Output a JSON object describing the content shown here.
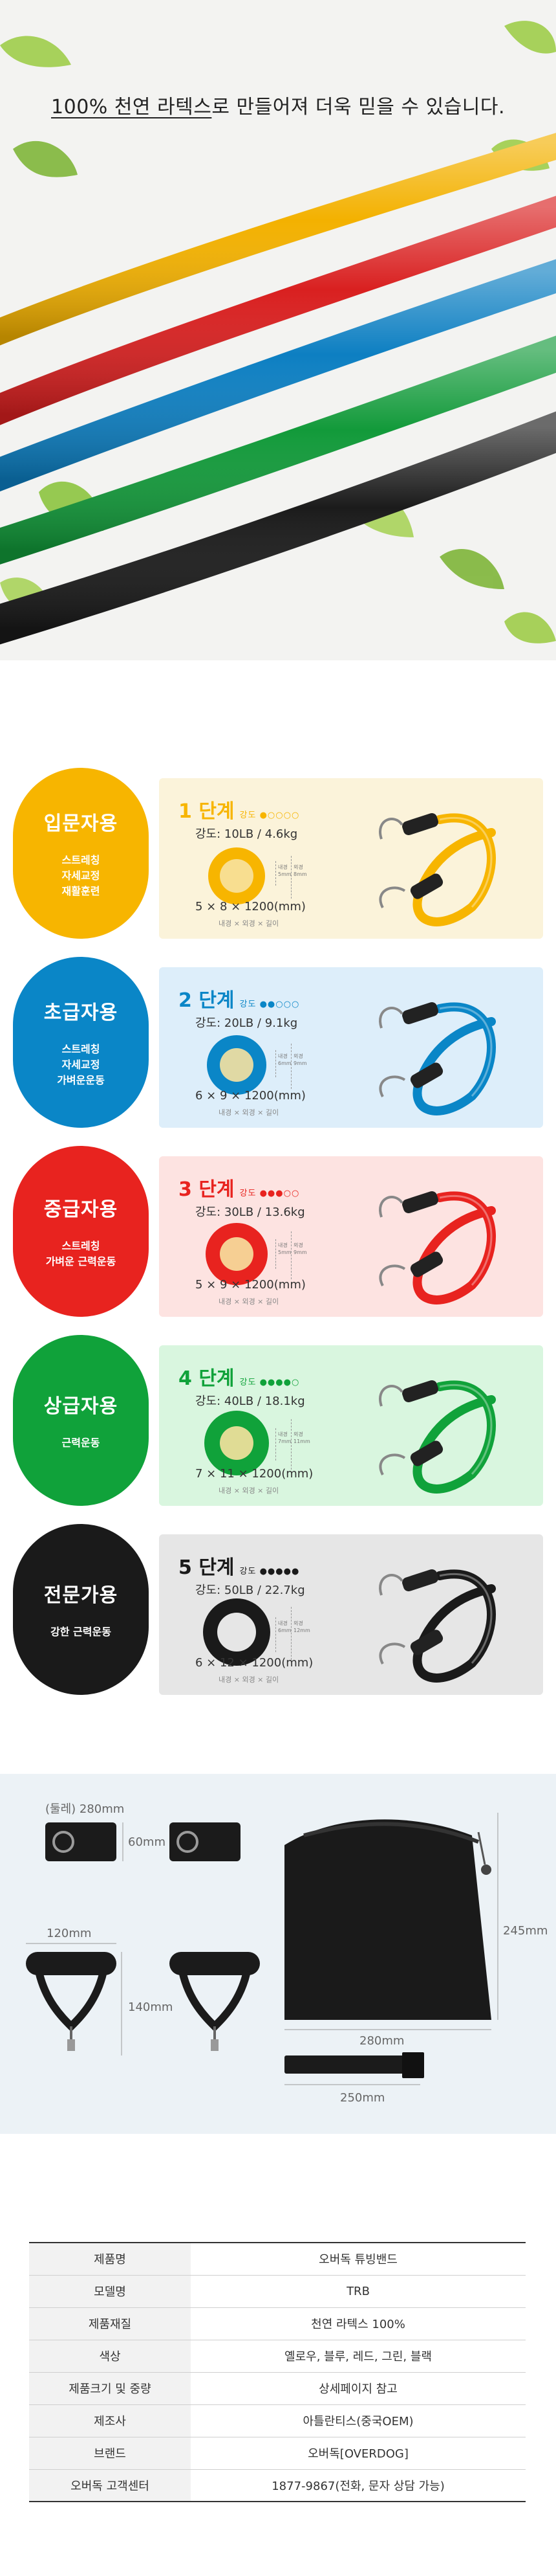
{
  "hero": {
    "headline_underlined": "100% 천연 라텍스",
    "headline_rest": "로 만들어져 더욱 믿을 수 있습니다."
  },
  "colors": {
    "yellow": "#f7b500",
    "blue": "#0a86c7",
    "red": "#e8231f",
    "green": "#10a23a",
    "black": "#1a1a1a"
  },
  "levels": [
    {
      "title": "입문자용",
      "uses": "스트레칭\n자세교정\n재활훈련",
      "stage": "1 단계",
      "intensity_label": "강도 ●○○○○",
      "strength": "강도: 10LB / 4.6kg",
      "size": "5 × 8 × 1200(mm)",
      "note": "내경 × 외경 × 길이",
      "inner_label": "내경\n5mm",
      "outer_label": "외경\n8mm",
      "color": "#f7b500",
      "card_bg": "#fbf3da",
      "level": 1
    },
    {
      "title": "초급자용",
      "uses": "스트레칭\n자세교정\n가벼운운동",
      "stage": "2 단계",
      "intensity_label": "강도 ●●○○○",
      "strength": "강도: 20LB / 9.1kg",
      "size": "6 × 9 × 1200(mm)",
      "note": "내경 × 외경 × 길이",
      "inner_label": "내경\n6mm",
      "outer_label": "외경\n9mm",
      "color": "#0a86c7",
      "card_bg": "#ddeefa",
      "level": 2
    },
    {
      "title": "중급자용",
      "uses": "스트레칭\n가벼운 근력운동",
      "stage": "3 단계",
      "intensity_label": "강도 ●●●○○",
      "strength": "강도: 30LB / 13.6kg",
      "size": "5 × 9 × 1200(mm)",
      "note": "내경 × 외경 × 길이",
      "inner_label": "내경\n5mm",
      "outer_label": "외경\n9mm",
      "color": "#e8231f",
      "card_bg": "#fde3e1",
      "level": 3
    },
    {
      "title": "상급자용",
      "uses": "근력운동",
      "stage": "4 단계",
      "intensity_label": "강도 ●●●●○",
      "strength": "강도: 40LB / 18.1kg",
      "size": "7 × 11 × 1200(mm)",
      "note": "내경 × 외경 × 길이",
      "inner_label": "내경\n7mm",
      "outer_label": "외경\n11mm",
      "color": "#10a23a",
      "card_bg": "#d9f6df",
      "level": 4
    },
    {
      "title": "전문가용",
      "uses": "강한 근력운동",
      "stage": "5 단계",
      "intensity_label": "강도 ●●●●●",
      "strength": "강도: 50LB / 22.7kg",
      "size": "6 × 12 × 1200(mm)",
      "note": "내경 × 외경 × 길이",
      "inner_label": "내경\n6mm",
      "outer_label": "외경\n12mm",
      "color": "#1a1a1a",
      "card_bg": "#e6e6e6",
      "level": 5
    }
  ],
  "accessories": {
    "ankle_width": "(둘레) 280mm",
    "ankle_height": "60mm",
    "handle_width": "120mm",
    "handle_height": "140mm",
    "bag_width": "280mm",
    "bag_height": "245mm",
    "anchor_width": "250mm"
  },
  "spec": {
    "rows": [
      {
        "key": "제품명",
        "value": "오버독 튜빙밴드"
      },
      {
        "key": "모델명",
        "value": "TRB"
      },
      {
        "key": "제품재질",
        "value": "천연 라텍스 100%"
      },
      {
        "key": "색상",
        "value": "옐로우, 블루, 레드, 그린, 블랙"
      },
      {
        "key": "제품크기 및 중량",
        "value": "상세페이지 참고"
      },
      {
        "key": "제조사",
        "value": "아틀란티스(중국OEM)"
      },
      {
        "key": "브랜드",
        "value": "오버독[OVERDOG]"
      },
      {
        "key": "오버독 고객센터",
        "value": "1877-9867(전화, 문자 상담 가능)"
      }
    ]
  }
}
